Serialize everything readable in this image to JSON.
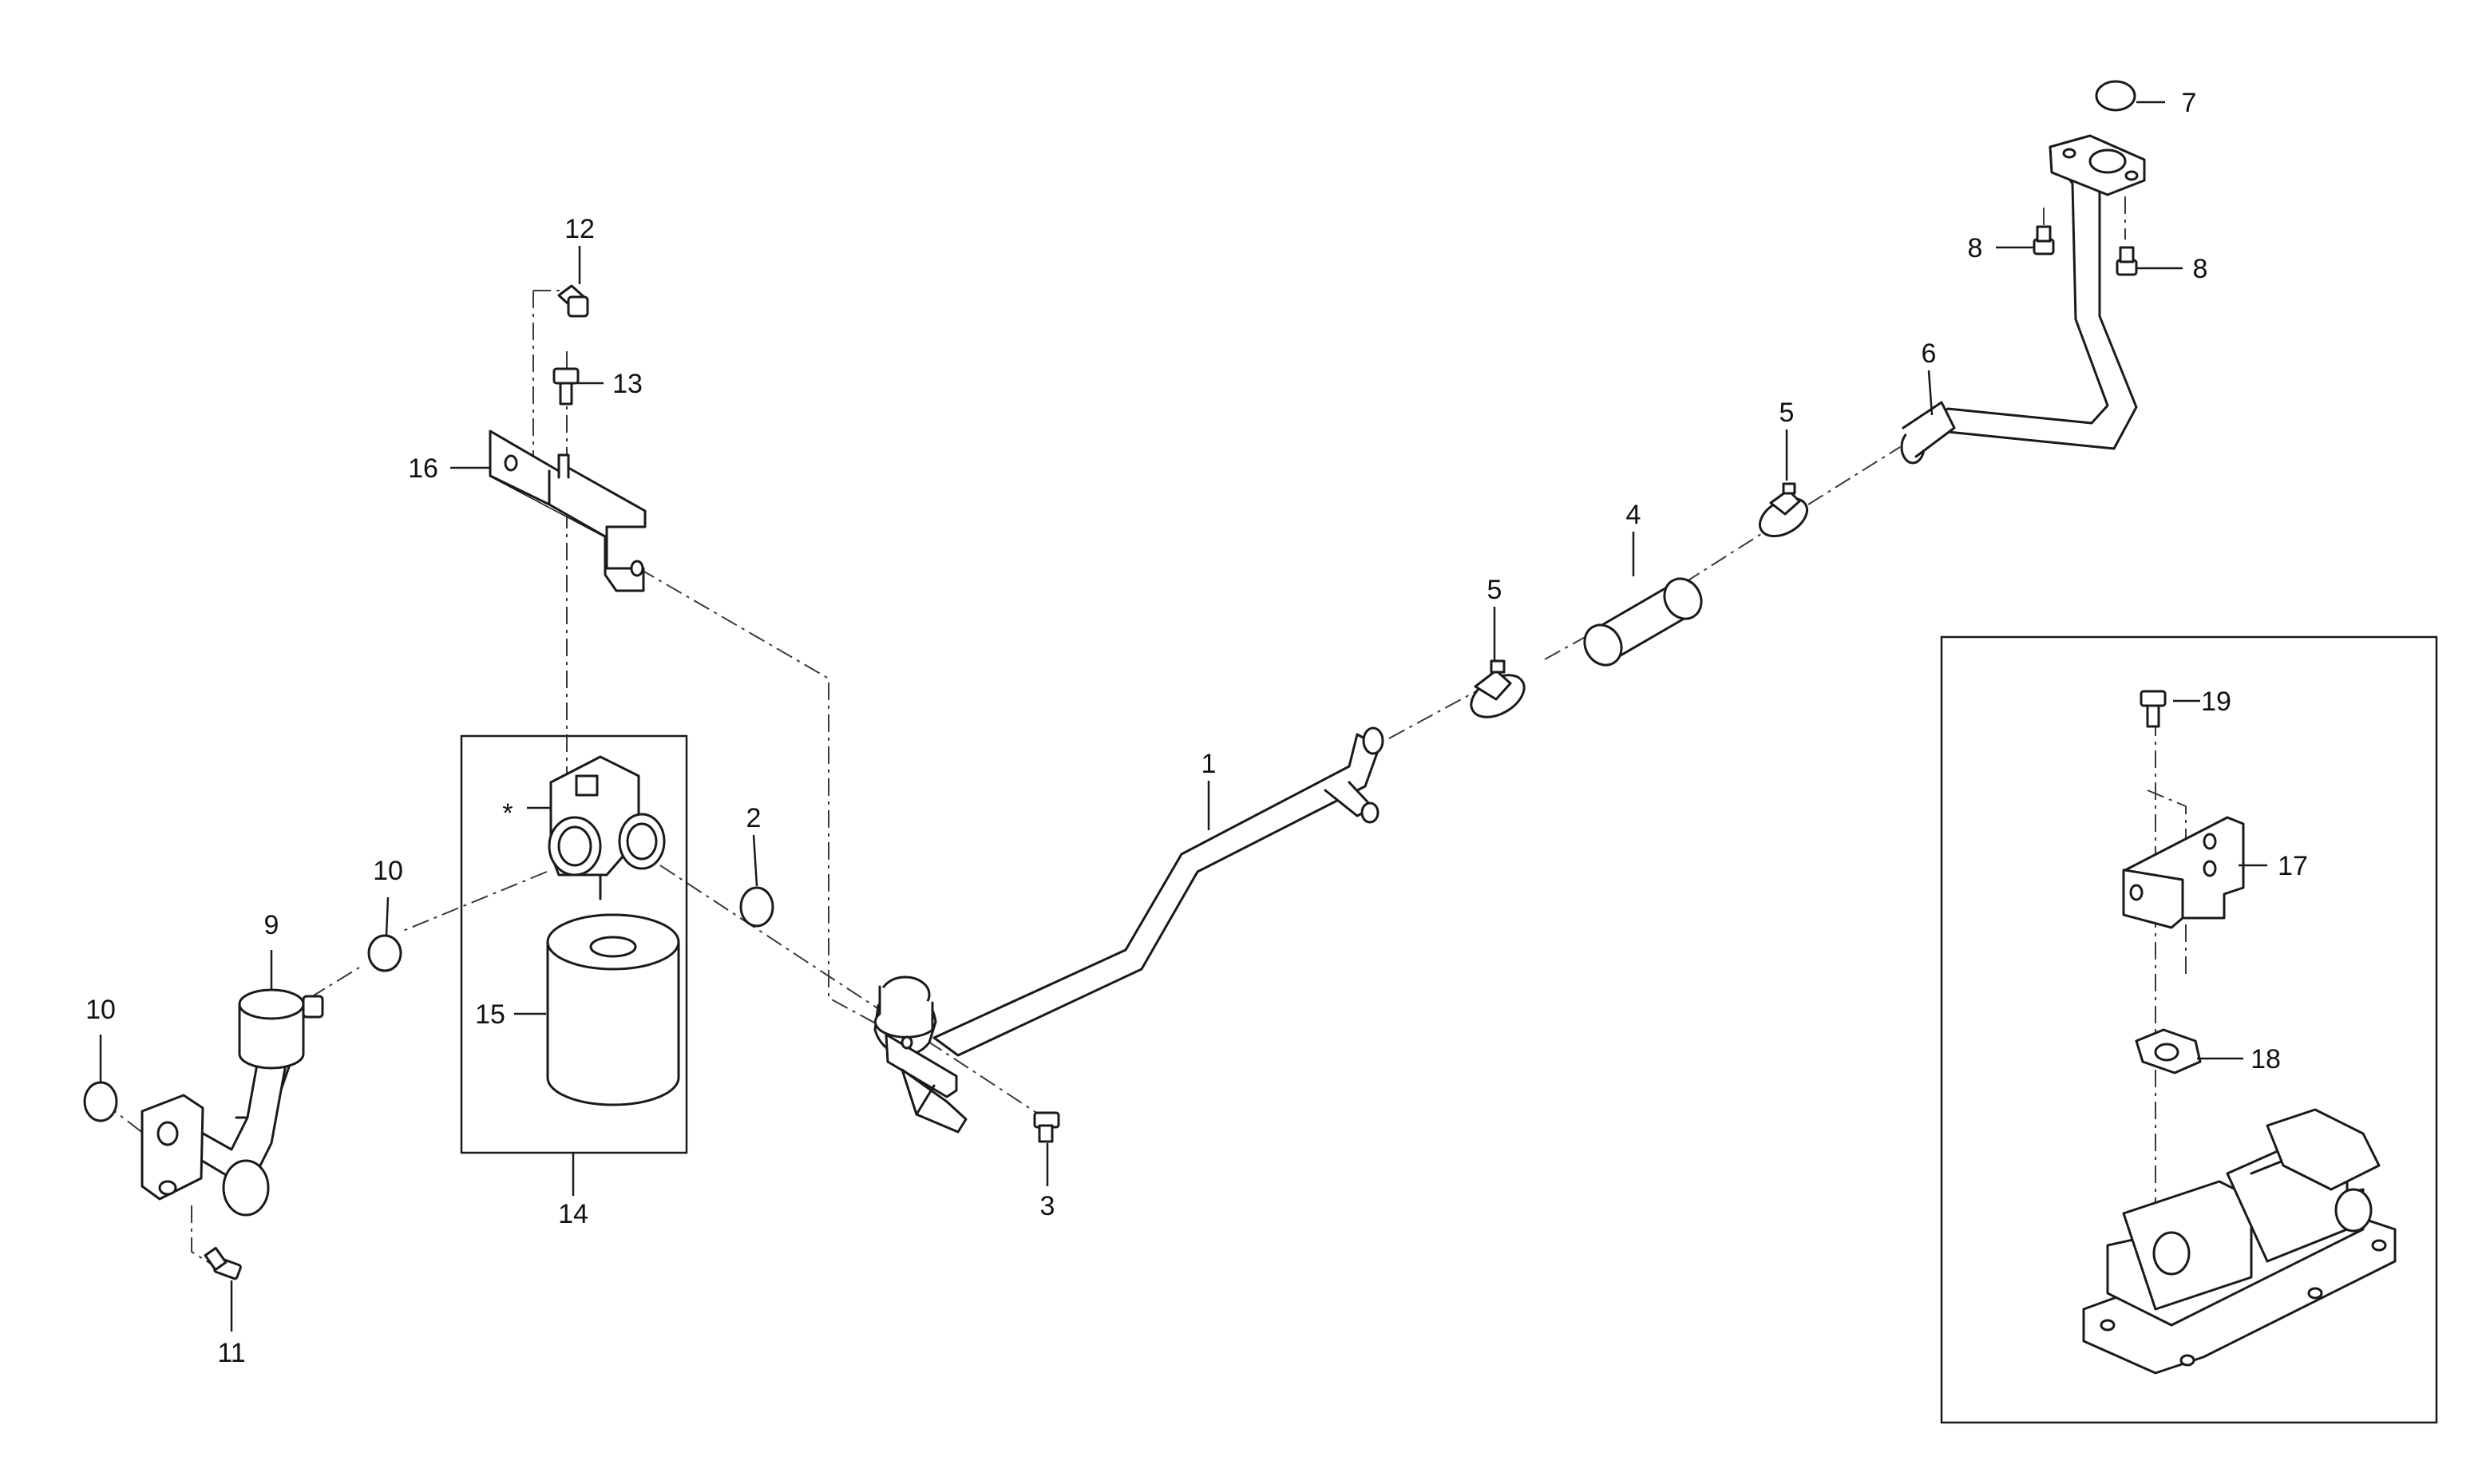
{
  "callouts": {
    "c1": "1",
    "c2": "2",
    "c3": "3",
    "c4": "4",
    "c5a": "5",
    "c5b": "5",
    "c6": "6",
    "c7": "7",
    "c8a": "8",
    "c8b": "8",
    "c9": "9",
    "c10a": "10",
    "c10b": "10",
    "c11": "11",
    "c12": "12",
    "c13": "13",
    "c14": "14",
    "c15": "15",
    "c16": "16",
    "c17": "17",
    "c18": "18",
    "c19": "19",
    "star": "*"
  },
  "colors": {
    "line": "#1a1a1a",
    "background": "#ffffff"
  }
}
